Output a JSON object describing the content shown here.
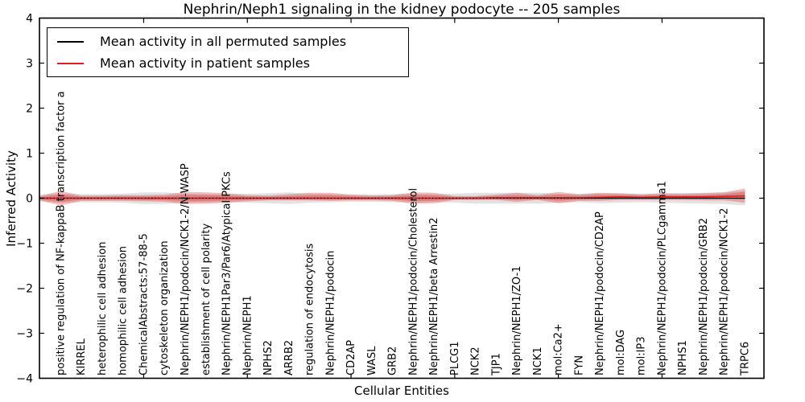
{
  "figure": {
    "title": "Nephrin/Neph1 signaling in the kidney podocyte -- 205 samples",
    "xlabel": "Cellular Entities",
    "ylabel": "Inferred Activity"
  },
  "legend": {
    "entries": [
      {
        "label": "Mean activity in all permuted samples",
        "color": "#000000"
      },
      {
        "label": "Mean activity in patient samples",
        "color": "#d91f1f"
      }
    ]
  },
  "chart_data": {
    "type": "line",
    "title": "Nephrin/Neph1 signaling in the kidney podocyte -- 205 samples",
    "xlabel": "Cellular Entities",
    "ylabel": "Inferred Activity",
    "ylim": [
      -4,
      4
    ],
    "ytick_labels": [
      "4",
      "3",
      "2",
      "1",
      "0",
      "−1",
      "−2",
      "−3",
      "−4"
    ],
    "ytick_values": [
      4,
      3,
      2,
      1,
      0,
      -1,
      -2,
      -3,
      -4
    ],
    "xtick_major_positions": [
      5,
      10,
      15,
      20,
      25,
      30
    ],
    "grid": false,
    "legend_position": "upper left",
    "categories": [
      "positive regulation of NF-kappaB transcription factor a",
      "KIRREL",
      "heterophilic cell adhesion",
      "homophilic cell adhesion",
      "ChemicalAbstracts:57-88-5",
      "cytoskeleton organization",
      "Nephrin/NEPH1/podocin/NCK1-2/N-WASP",
      "establishment of cell polarity",
      "Nephrin/NEPH1Par3/Par6/Atypical PKCs",
      "Nephrin/NEPH1",
      "NPHS2",
      "ARRB2",
      "regulation of endocytosis",
      "Nephrin/NEPH1/podocin",
      "CD2AP",
      "WASL",
      "GRB2",
      "Nephrin/NEPH1/podocin/Cholesterol",
      "Nephrin/NEPH1/beta Arrestin2",
      "PLCG1",
      "NCK2",
      "TJP1",
      "Nephrin/NEPH1/ZO-1",
      "NCK1",
      "mol:Ca2+",
      "FYN",
      "Nephrin/NEPH1/podocin/CD2AP",
      "mol:DAG",
      "mol:IP3",
      "Nephrin/NEPH1/podocin/PLCgamma1",
      "NPHS1",
      "Nephrin/NEPH1/podocin/GRB2",
      "Nephrin/NEPH1/podocin/NCK1-2",
      "TRPC6"
    ],
    "series": [
      {
        "name": "Mean activity in all permuted samples",
        "color": "#000000",
        "style": "solid",
        "values": [
          0,
          0,
          0,
          0,
          0,
          0,
          0,
          0,
          0,
          0,
          0,
          0,
          0,
          0,
          0,
          0,
          0,
          0,
          0,
          0,
          0,
          0,
          0,
          0,
          0,
          0,
          0,
          0,
          0,
          0,
          0,
          0,
          0,
          0
        ]
      },
      {
        "name": "Mean activity in patient samples",
        "color": "#d91f1f",
        "style": "solid",
        "values": [
          0,
          0,
          0,
          0,
          0,
          0,
          0,
          0,
          0,
          0,
          0,
          0,
          0,
          0,
          0,
          0,
          0,
          0,
          0,
          0,
          0,
          0.01,
          0.01,
          0.01,
          0.01,
          0.01,
          0.02,
          0.03,
          0.02,
          0.03,
          0.03,
          0.03,
          0.04,
          0.05
        ]
      },
      {
        "name": "zero baseline",
        "color": "#000000",
        "style": "dotted",
        "values": [
          0,
          0,
          0,
          0,
          0,
          0,
          0,
          0,
          0,
          0,
          0,
          0,
          0,
          0,
          0,
          0,
          0,
          0,
          0,
          0,
          0,
          0,
          0,
          0,
          0,
          0,
          0,
          0,
          0,
          0,
          0,
          0,
          0,
          0
        ]
      }
    ],
    "bands": [
      {
        "name": "permuted-samples-spread",
        "color": "#a0a0a0",
        "opacity": 0.3,
        "half_width_upper": [
          0.1,
          0.09,
          0.09,
          0.1,
          0.13,
          0.13,
          0.1,
          0.09,
          0.09,
          0.1,
          0.11,
          0.13,
          0.1,
          0.09,
          0.08,
          0.08,
          0.09,
          0.1,
          0.09,
          0.1,
          0.12,
          0.12,
          0.12,
          0.12,
          0.1,
          0.09,
          0.11,
          0.1,
          0.09,
          0.1,
          0.11,
          0.12,
          0.13,
          0.16
        ],
        "half_width_lower": [
          0.1,
          0.09,
          0.09,
          0.1,
          0.13,
          0.13,
          0.1,
          0.09,
          0.09,
          0.1,
          0.11,
          0.13,
          0.1,
          0.09,
          0.08,
          0.08,
          0.09,
          0.1,
          0.09,
          0.1,
          0.12,
          0.12,
          0.12,
          0.12,
          0.1,
          0.09,
          0.11,
          0.1,
          0.09,
          0.1,
          0.11,
          0.12,
          0.13,
          0.16
        ]
      },
      {
        "name": "patient-samples-spread",
        "color": "#dd3030",
        "opacity": 0.32,
        "half_width_upper": [
          0.16,
          0.06,
          0.06,
          0.07,
          0.07,
          0.08,
          0.14,
          0.13,
          0.11,
          0.07,
          0.06,
          0.09,
          0.12,
          0.12,
          0.08,
          0.06,
          0.07,
          0.13,
          0.12,
          0.05,
          0.05,
          0.07,
          0.11,
          0.06,
          0.13,
          0.08,
          0.1,
          0.08,
          0.07,
          0.08,
          0.07,
          0.08,
          0.09,
          0.17
        ],
        "half_width_lower": [
          0.16,
          0.06,
          0.06,
          0.06,
          0.07,
          0.08,
          0.13,
          0.12,
          0.1,
          0.07,
          0.05,
          0.05,
          0.05,
          0.06,
          0.05,
          0.05,
          0.06,
          0.12,
          0.11,
          0.04,
          0.04,
          0.05,
          0.09,
          0.05,
          0.12,
          0.07,
          0.08,
          0.07,
          0.06,
          0.07,
          0.07,
          0.08,
          0.09,
          0.15
        ]
      }
    ]
  }
}
